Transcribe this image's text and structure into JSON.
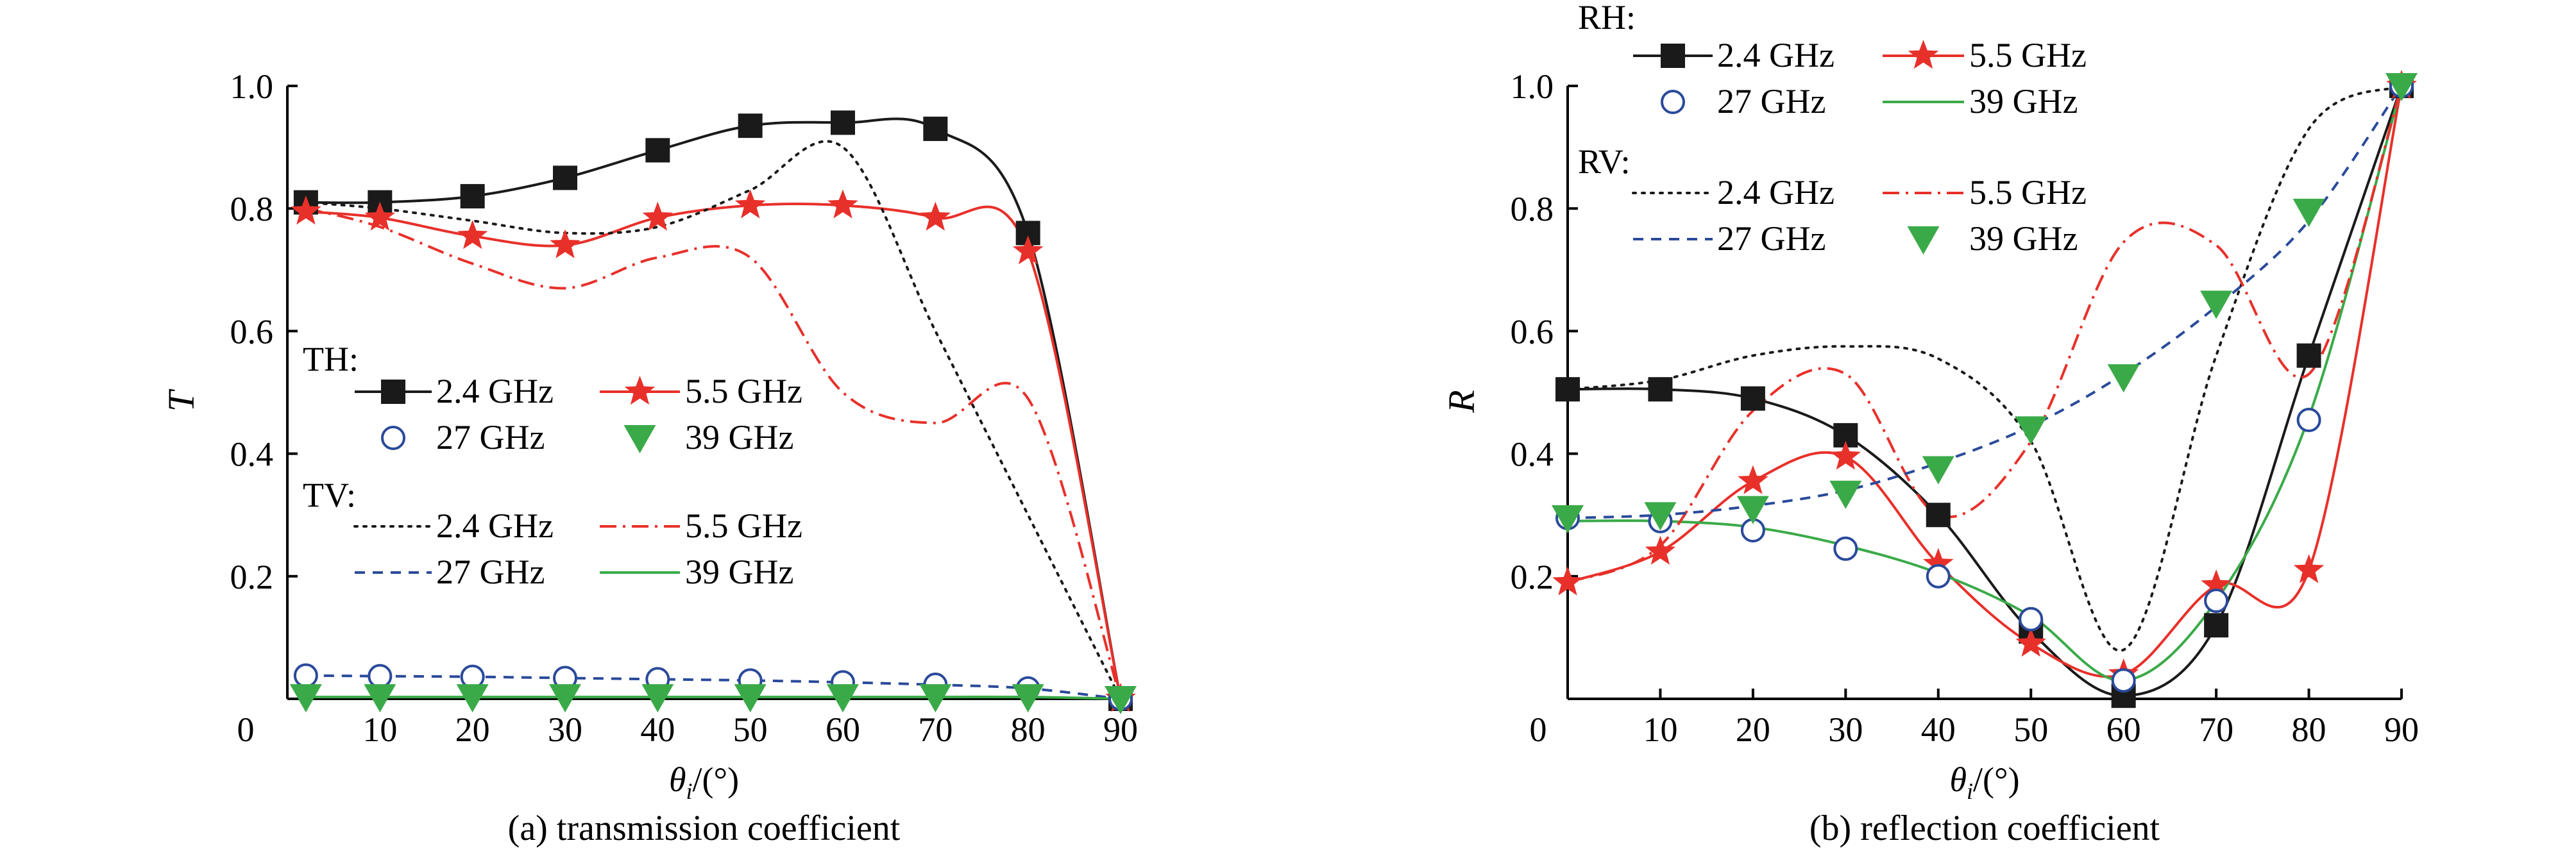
{
  "chart_data": [
    {
      "type": "line",
      "caption": "(a) transmission coefficient",
      "xlabel_main": "θ",
      "xlabel_sub": "i",
      "xlabel_rest": "/(°)",
      "ylabel": "T",
      "xlim": [
        0,
        90
      ],
      "ylim": [
        0,
        1.0
      ],
      "x_ticks": [
        "0",
        "10",
        "20",
        "30",
        "40",
        "50",
        "60",
        "70",
        "80",
        "90"
      ],
      "y_ticks": [
        "0.2",
        "0.4",
        "0.6",
        "0.8",
        "1.0"
      ],
      "legend_groups": [
        "TH:",
        "TV:"
      ],
      "series": [
        {
          "name": "2.4 GHz",
          "group": "TH",
          "style": "solid",
          "color": "#1a1a1a",
          "marker": "square",
          "x": [
            2,
            10,
            20,
            30,
            40,
            50,
            60,
            70,
            80,
            90
          ],
          "y": [
            0.81,
            0.81,
            0.82,
            0.85,
            0.895,
            0.935,
            0.94,
            0.93,
            0.76,
            0.0
          ]
        },
        {
          "name": "5.5 GHz",
          "group": "TH",
          "style": "solid",
          "color": "#e8302a",
          "marker": "star",
          "x": [
            2,
            10,
            20,
            30,
            40,
            50,
            60,
            70,
            80,
            90
          ],
          "y": [
            0.795,
            0.785,
            0.755,
            0.74,
            0.785,
            0.805,
            0.805,
            0.785,
            0.73,
            0.0
          ]
        },
        {
          "name": "27 GHz",
          "group": "TH",
          "style": "none",
          "color": "#2a4a9a",
          "marker": "circle",
          "x": [
            2,
            10,
            20,
            30,
            40,
            50,
            60,
            70,
            80,
            90
          ],
          "y": [
            0.038,
            0.037,
            0.036,
            0.034,
            0.032,
            0.03,
            0.027,
            0.023,
            0.017,
            0.0
          ]
        },
        {
          "name": "39 GHz",
          "group": "TH",
          "style": "none",
          "color": "#3aaa48",
          "marker": "triangle",
          "x": [
            2,
            10,
            20,
            30,
            40,
            50,
            60,
            70,
            80,
            90
          ],
          "y": [
            0.003,
            0.003,
            0.003,
            0.003,
            0.003,
            0.003,
            0.003,
            0.003,
            0.003,
            0.0
          ]
        },
        {
          "name": "2.4 GHz",
          "group": "TV",
          "style": "dotted",
          "color": "#1a1a1a",
          "marker": "none",
          "x": [
            2,
            10,
            20,
            30,
            40,
            50,
            60,
            70,
            80,
            90
          ],
          "y": [
            0.81,
            0.8,
            0.78,
            0.76,
            0.77,
            0.83,
            0.9,
            0.6,
            0.3,
            0.0
          ]
        },
        {
          "name": "5.5 GHz",
          "group": "TV",
          "style": "dashdot",
          "color": "#e8302a",
          "marker": "none",
          "x": [
            2,
            10,
            20,
            30,
            40,
            50,
            60,
            70,
            80,
            90
          ],
          "y": [
            0.8,
            0.77,
            0.71,
            0.67,
            0.72,
            0.72,
            0.5,
            0.45,
            0.49,
            0.0
          ]
        },
        {
          "name": "27 GHz",
          "group": "TV",
          "style": "dashed",
          "color": "#2a4a9a",
          "marker": "none",
          "x": [
            2,
            10,
            20,
            30,
            40,
            50,
            60,
            70,
            80,
            90
          ],
          "y": [
            0.038,
            0.037,
            0.036,
            0.034,
            0.032,
            0.03,
            0.027,
            0.023,
            0.017,
            0.0
          ]
        },
        {
          "name": "39 GHz",
          "group": "TV",
          "style": "solid",
          "color": "#3aaa48",
          "marker": "none",
          "x": [
            2,
            10,
            20,
            30,
            40,
            50,
            60,
            70,
            80,
            90
          ],
          "y": [
            0.003,
            0.003,
            0.003,
            0.003,
            0.003,
            0.003,
            0.003,
            0.003,
            0.003,
            0.0
          ]
        }
      ]
    },
    {
      "type": "line",
      "caption": "(b) reflection coefficient",
      "xlabel_main": "θ",
      "xlabel_sub": "i",
      "xlabel_rest": "/(°)",
      "ylabel": "R",
      "xlim": [
        0,
        90
      ],
      "ylim": [
        0,
        1.0
      ],
      "x_ticks": [
        "0",
        "10",
        "20",
        "30",
        "40",
        "50",
        "60",
        "70",
        "80",
        "90"
      ],
      "y_ticks": [
        "0.2",
        "0.4",
        "0.6",
        "0.8",
        "1.0"
      ],
      "legend_groups": [
        "RH:",
        "RV:"
      ],
      "series": [
        {
          "name": "2.4 GHz",
          "group": "RH",
          "style": "solid",
          "color": "#1a1a1a",
          "marker": "square",
          "x": [
            0,
            10,
            20,
            30,
            40,
            50,
            60,
            70,
            80,
            90
          ],
          "y": [
            0.505,
            0.505,
            0.49,
            0.43,
            0.3,
            0.11,
            0.005,
            0.12,
            0.56,
            1.0
          ]
        },
        {
          "name": "5.5 GHz",
          "group": "RH",
          "style": "solid",
          "color": "#e8302a",
          "marker": "star",
          "x": [
            0,
            10,
            20,
            30,
            40,
            50,
            60,
            70,
            80,
            90
          ],
          "y": [
            0.19,
            0.24,
            0.355,
            0.395,
            0.22,
            0.09,
            0.04,
            0.185,
            0.21,
            1.0
          ]
        },
        {
          "name": "27 GHz",
          "group": "RH",
          "style": "none",
          "color": "#2a4a9a",
          "marker": "circle",
          "x": [
            0,
            10,
            20,
            30,
            40,
            50,
            60,
            70,
            80,
            90
          ],
          "y": [
            0.295,
            0.29,
            0.275,
            0.245,
            0.2,
            0.13,
            0.03,
            0.16,
            0.455,
            1.0
          ]
        },
        {
          "name": "39 GHz",
          "group": "RH",
          "style": "solid",
          "color": "#3aaa48",
          "marker": "none",
          "x": [
            0,
            10,
            20,
            30,
            40,
            50,
            60,
            70,
            80,
            90
          ],
          "y": [
            0.29,
            0.29,
            0.28,
            0.25,
            0.205,
            0.135,
            0.03,
            0.16,
            0.46,
            1.0
          ]
        },
        {
          "name": "2.4 GHz",
          "group": "RV",
          "style": "dotted",
          "color": "#1a1a1a",
          "marker": "none",
          "x": [
            0,
            10,
            20,
            30,
            40,
            50,
            60,
            70,
            80,
            90
          ],
          "y": [
            0.505,
            0.52,
            0.56,
            0.575,
            0.555,
            0.42,
            0.08,
            0.56,
            0.93,
            1.0
          ]
        },
        {
          "name": "5.5 GHz",
          "group": "RV",
          "style": "dashdot",
          "color": "#e8302a",
          "marker": "none",
          "x": [
            0,
            10,
            20,
            30,
            40,
            50,
            60,
            70,
            80,
            90
          ],
          "y": [
            0.19,
            0.25,
            0.47,
            0.53,
            0.3,
            0.42,
            0.745,
            0.74,
            0.53,
            1.0
          ]
        },
        {
          "name": "27 GHz",
          "group": "RV",
          "style": "dashed",
          "color": "#2a4a9a",
          "marker": "none",
          "x": [
            0,
            10,
            20,
            30,
            40,
            50,
            60,
            70,
            80,
            90
          ],
          "y": [
            0.295,
            0.3,
            0.315,
            0.34,
            0.385,
            0.445,
            0.53,
            0.64,
            0.78,
            1.0
          ]
        },
        {
          "name": "39 GHz",
          "group": "RV",
          "style": "none",
          "color": "#3aaa48",
          "marker": "triangle",
          "x": [
            0,
            10,
            20,
            30,
            40,
            50,
            60,
            70,
            80,
            90
          ],
          "y": [
            0.295,
            0.3,
            0.31,
            0.335,
            0.375,
            0.44,
            0.525,
            0.645,
            0.795,
            1.0
          ]
        }
      ]
    }
  ]
}
